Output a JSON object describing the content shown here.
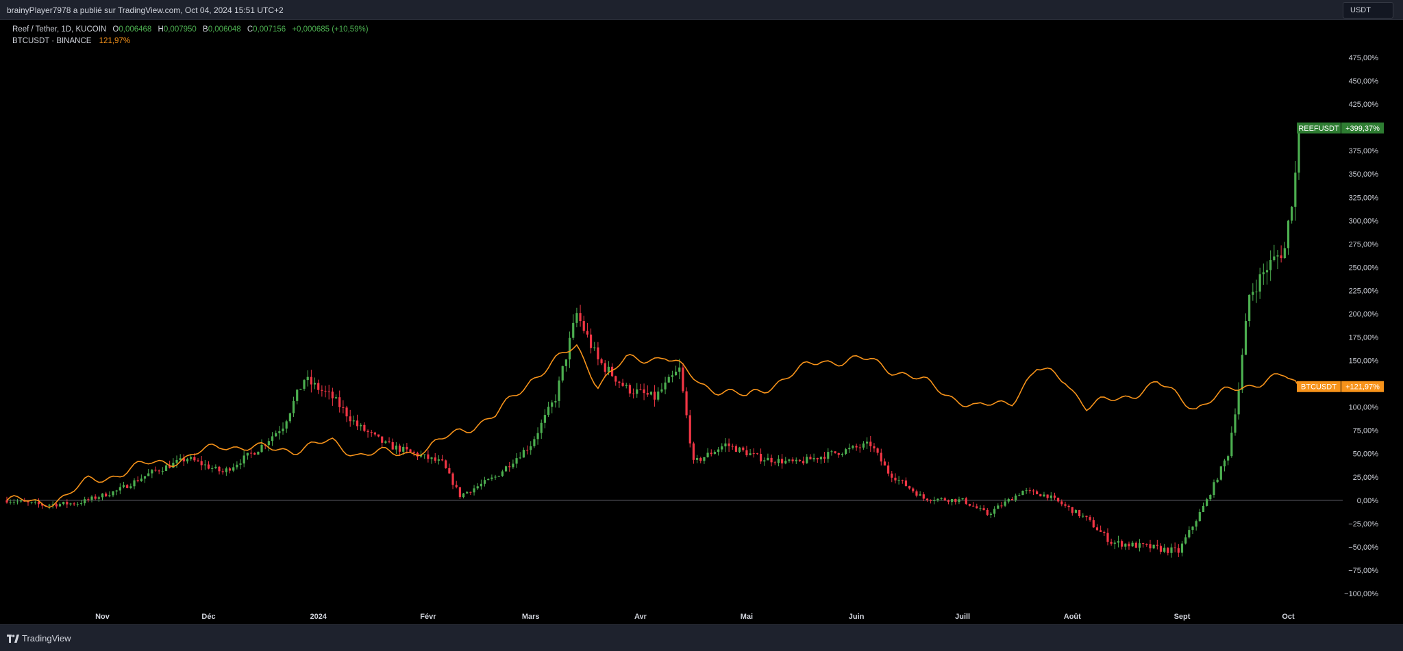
{
  "header": {
    "attribution": "brainyPlayer7978 a publié sur TradingView.com, Oct 04, 2024 15:51 UTC+2"
  },
  "legend": {
    "title": "Reef / Tether, 1D, KUCOIN",
    "open_label": "O",
    "open": "0,006468",
    "high_label": "H",
    "high": "0,007950",
    "low_label": "B",
    "low": "0,006048",
    "close_label": "C",
    "close": "0,007156",
    "change": "+0,000685 (+10,59%)",
    "compare_name": "BTCUSDT · BINANCE",
    "compare_value": "121,97%"
  },
  "currency_button": "USDT",
  "footer": {
    "brand": "TradingView"
  },
  "colors": {
    "up": "#26a69a",
    "up_candle": "#4caf50",
    "down": "#f23645",
    "btc": "#f7931a",
    "background": "#000000",
    "tag_green": "#2e7d32"
  },
  "chart_data": {
    "type": "line",
    "title": "Reef / Tether, 1D, KUCOIN",
    "x_labels": [
      "Nov",
      "Déc",
      "2024",
      "Févr",
      "Mars",
      "Avr",
      "Mai",
      "Juin",
      "Juill",
      "Août",
      "Sept",
      "Oct"
    ],
    "y_ticks": [
      "475,00%",
      "450,00%",
      "425,00%",
      "400,00%",
      "375,00%",
      "350,00%",
      "325,00%",
      "300,00%",
      "275,00%",
      "250,00%",
      "225,00%",
      "200,00%",
      "175,00%",
      "150,00%",
      "125,00%",
      "100,00%",
      "75,00%",
      "50,00%",
      "25,00%",
      "0,00%",
      "−25,00%",
      "−50,00%",
      "−75,00%",
      "−100,00%"
    ],
    "y_range": [
      -100,
      475
    ],
    "y_unit": "%",
    "series": [
      {
        "name": "REEFUSDT",
        "style": "candlestick",
        "last_label": "+399,37%",
        "last_value": 399.37,
        "path": [
          [
            "2023-10-05",
            0
          ],
          [
            "2023-10-15",
            -5
          ],
          [
            "2023-10-25",
            -3
          ],
          [
            "2023-11-05",
            10
          ],
          [
            "2023-11-15",
            30
          ],
          [
            "2023-11-25",
            45
          ],
          [
            "2023-12-05",
            30
          ],
          [
            "2023-12-15",
            55
          ],
          [
            "2023-12-22",
            80
          ],
          [
            "2023-12-28",
            130
          ],
          [
            "2024-01-05",
            110
          ],
          [
            "2024-01-12",
            80
          ],
          [
            "2024-01-20",
            60
          ],
          [
            "2024-01-28",
            50
          ],
          [
            "2024-02-05",
            40
          ],
          [
            "2024-02-10",
            5
          ],
          [
            "2024-02-20",
            25
          ],
          [
            "2024-03-01",
            60
          ],
          [
            "2024-03-08",
            110
          ],
          [
            "2024-03-14",
            200
          ],
          [
            "2024-03-20",
            150
          ],
          [
            "2024-03-28",
            120
          ],
          [
            "2024-04-05",
            110
          ],
          [
            "2024-04-12",
            140
          ],
          [
            "2024-04-16",
            40
          ],
          [
            "2024-04-25",
            60
          ],
          [
            "2024-05-05",
            45
          ],
          [
            "2024-05-15",
            40
          ],
          [
            "2024-05-25",
            50
          ],
          [
            "2024-06-05",
            60
          ],
          [
            "2024-06-10",
            30
          ],
          [
            "2024-06-20",
            2
          ],
          [
            "2024-07-01",
            0
          ],
          [
            "2024-07-08",
            -15
          ],
          [
            "2024-07-18",
            10
          ],
          [
            "2024-07-25",
            5
          ],
          [
            "2024-08-05",
            -20
          ],
          [
            "2024-08-12",
            -45
          ],
          [
            "2024-08-22",
            -50
          ],
          [
            "2024-08-31",
            -55
          ],
          [
            "2024-09-08",
            0
          ],
          [
            "2024-09-14",
            50
          ],
          [
            "2024-09-17",
            120
          ],
          [
            "2024-09-20",
            220
          ],
          [
            "2024-09-25",
            250
          ],
          [
            "2024-09-30",
            270
          ],
          [
            "2024-10-03",
            350
          ],
          [
            "2024-10-04",
            399.37
          ]
        ]
      },
      {
        "name": "BTCUSDT",
        "style": "line",
        "last_label": "+121,97%",
        "last_value": 121.97,
        "path": [
          [
            "2023-10-05",
            0
          ],
          [
            "2023-10-15",
            -3
          ],
          [
            "2023-10-22",
            5
          ],
          [
            "2023-10-28",
            20
          ],
          [
            "2023-11-05",
            28
          ],
          [
            "2023-11-15",
            40
          ],
          [
            "2023-11-25",
            45
          ],
          [
            "2023-12-05",
            60
          ],
          [
            "2023-12-15",
            55
          ],
          [
            "2023-12-25",
            55
          ],
          [
            "2024-01-05",
            62
          ],
          [
            "2024-01-12",
            50
          ],
          [
            "2024-01-22",
            50
          ],
          [
            "2024-02-01",
            55
          ],
          [
            "2024-02-10",
            75
          ],
          [
            "2024-02-20",
            90
          ],
          [
            "2024-03-01",
            130
          ],
          [
            "2024-03-14",
            165
          ],
          [
            "2024-03-20",
            125
          ],
          [
            "2024-03-28",
            150
          ],
          [
            "2024-04-08",
            155
          ],
          [
            "2024-04-18",
            125
          ],
          [
            "2024-05-01",
            110
          ],
          [
            "2024-05-10",
            128
          ],
          [
            "2024-05-22",
            150
          ],
          [
            "2024-06-05",
            150
          ],
          [
            "2024-06-15",
            135
          ],
          [
            "2024-06-25",
            118
          ],
          [
            "2024-07-05",
            98
          ],
          [
            "2024-07-15",
            108
          ],
          [
            "2024-07-22",
            140
          ],
          [
            "2024-07-30",
            130
          ],
          [
            "2024-08-05",
            100
          ],
          [
            "2024-08-15",
            110
          ],
          [
            "2024-08-25",
            125
          ],
          [
            "2024-09-05",
            100
          ],
          [
            "2024-09-15",
            118
          ],
          [
            "2024-09-25",
            130
          ],
          [
            "2024-09-30",
            132
          ],
          [
            "2024-10-04",
            121.97
          ]
        ]
      }
    ],
    "grid": false,
    "legend_position": "top-left"
  }
}
